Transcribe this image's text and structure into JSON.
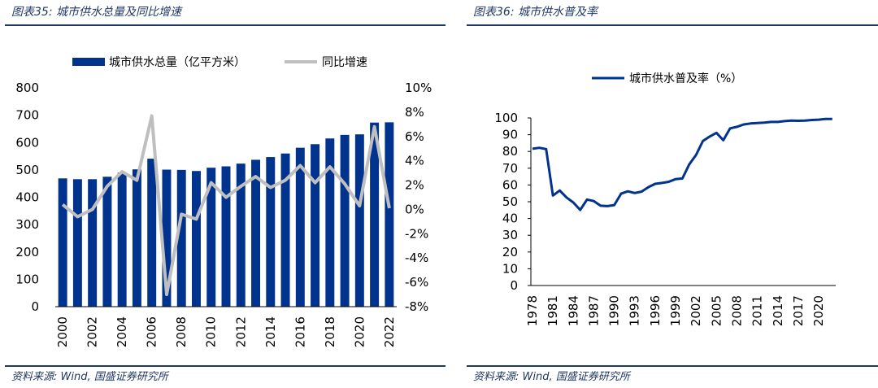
{
  "left": {
    "figure_title": "图表35: 城市供水总量及同比增速",
    "source": "资料来源: Wind, 国盛证券研究所"
  },
  "right": {
    "figure_title": "图表36: 城市供水普及率",
    "source": "资料来源: Wind, 国盛证券研究所"
  },
  "colors": {
    "bar": "#00338d",
    "growth_line": "#bfbfbf",
    "rate_line": "#00338d",
    "accent": "#1f3864"
  },
  "chart_data": [
    {
      "type": "bar",
      "title": "",
      "categories": [
        "2000",
        "2001",
        "2002",
        "2003",
        "2004",
        "2005",
        "2006",
        "2007",
        "2008",
        "2009",
        "2010",
        "2011",
        "2012",
        "2013",
        "2014",
        "2015",
        "2016",
        "2017",
        "2018",
        "2019",
        "2020",
        "2021",
        "2022"
      ],
      "x_tick_labels": [
        "2000",
        "2002",
        "2004",
        "2006",
        "2008",
        "2010",
        "2012",
        "2014",
        "2016",
        "2018",
        "2020",
        "2022"
      ],
      "series": [
        {
          "name": "城市供水总量（亿平方米）",
          "type": "bar",
          "axis": "left",
          "values": [
            469,
            466,
            466,
            475,
            490,
            502,
            541,
            501,
            500,
            496,
            508,
            513,
            523,
            537,
            547,
            560,
            581,
            594,
            615,
            628,
            630,
            673,
            674
          ]
        },
        {
          "name": "同比增速",
          "type": "line",
          "axis": "right",
          "values": [
            0.4,
            -0.6,
            0.0,
            1.9,
            3.1,
            2.4,
            7.7,
            -7.0,
            -0.4,
            -0.8,
            2.2,
            1.0,
            1.9,
            2.7,
            1.8,
            2.4,
            3.6,
            2.2,
            3.5,
            2.1,
            0.3,
            6.8,
            0.1
          ]
        }
      ],
      "y_left": {
        "lim": [
          0,
          800
        ],
        "ticks": [
          0,
          100,
          200,
          300,
          400,
          500,
          600,
          700,
          800
        ]
      },
      "y_right": {
        "lim": [
          -8,
          10
        ],
        "ticks": [
          -8,
          -6,
          -4,
          -2,
          0,
          2,
          4,
          6,
          8,
          10
        ],
        "unit": "%"
      },
      "legend": "top",
      "grid": false
    },
    {
      "type": "line",
      "title": "",
      "x": [
        1978,
        1979,
        1980,
        1981,
        1982,
        1983,
        1984,
        1985,
        1986,
        1987,
        1988,
        1989,
        1990,
        1991,
        1992,
        1993,
        1994,
        1995,
        1996,
        1997,
        1998,
        1999,
        2000,
        2001,
        2002,
        2003,
        2004,
        2005,
        2006,
        2007,
        2008,
        2009,
        2010,
        2011,
        2012,
        2013,
        2014,
        2015,
        2016,
        2017,
        2018,
        2019,
        2020,
        2021,
        2022
      ],
      "x_tick_labels": [
        "1978",
        "1981",
        "1984",
        "1987",
        "1990",
        "1993",
        "1996",
        "1999",
        "2002",
        "2005",
        "2008",
        "2011",
        "2014",
        "2017",
        "2020"
      ],
      "series": [
        {
          "name": "城市供水普及率（%）",
          "values": [
            81.6,
            82.2,
            81.4,
            53.7,
            56.7,
            52.5,
            49.5,
            45.1,
            51.3,
            50.4,
            47.6,
            47.4,
            48.0,
            54.8,
            56.2,
            55.2,
            56.0,
            58.7,
            60.7,
            61.2,
            61.9,
            63.5,
            63.9,
            72.3,
            77.9,
            86.2,
            88.9,
            91.1,
            86.7,
            93.8,
            94.7,
            96.1,
            96.7,
            97.0,
            97.2,
            97.6,
            97.6,
            98.1,
            98.4,
            98.3,
            98.4,
            98.8,
            99.0,
            99.4,
            99.4
          ]
        }
      ],
      "y": {
        "lim": [
          0,
          100
        ],
        "ticks": [
          0,
          10,
          20,
          30,
          40,
          50,
          60,
          70,
          80,
          90,
          100
        ]
      },
      "legend": "top",
      "grid": false
    }
  ]
}
